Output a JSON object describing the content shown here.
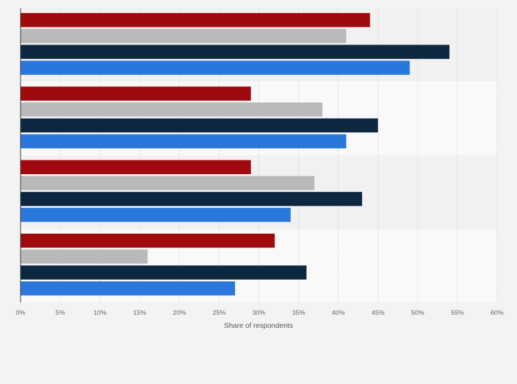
{
  "chart_data": {
    "type": "bar",
    "orientation": "horizontal",
    "categories": [
      "",
      "",
      "",
      ""
    ],
    "series": [
      {
        "color": "#a0090e",
        "values": [
          44,
          29,
          29,
          32
        ]
      },
      {
        "color": "#b9b9b9",
        "values": [
          41,
          38,
          37,
          16
        ]
      },
      {
        "color": "#0e2740",
        "values": [
          54,
          45,
          43,
          36
        ]
      },
      {
        "color": "#2a77db",
        "values": [
          49,
          41,
          34,
          27
        ]
      }
    ],
    "xlim": [
      0,
      60
    ],
    "xticks": [
      0,
      5,
      10,
      15,
      20,
      25,
      30,
      35,
      40,
      45,
      50,
      55,
      60
    ],
    "tick_suffix": "%",
    "xlabel": "Share of respondents",
    "ylabel": "",
    "title": "",
    "legend": "none",
    "grid": "vertical dashed",
    "band_colors": [
      "#f1f1f1",
      "#f9f9f9"
    ]
  }
}
